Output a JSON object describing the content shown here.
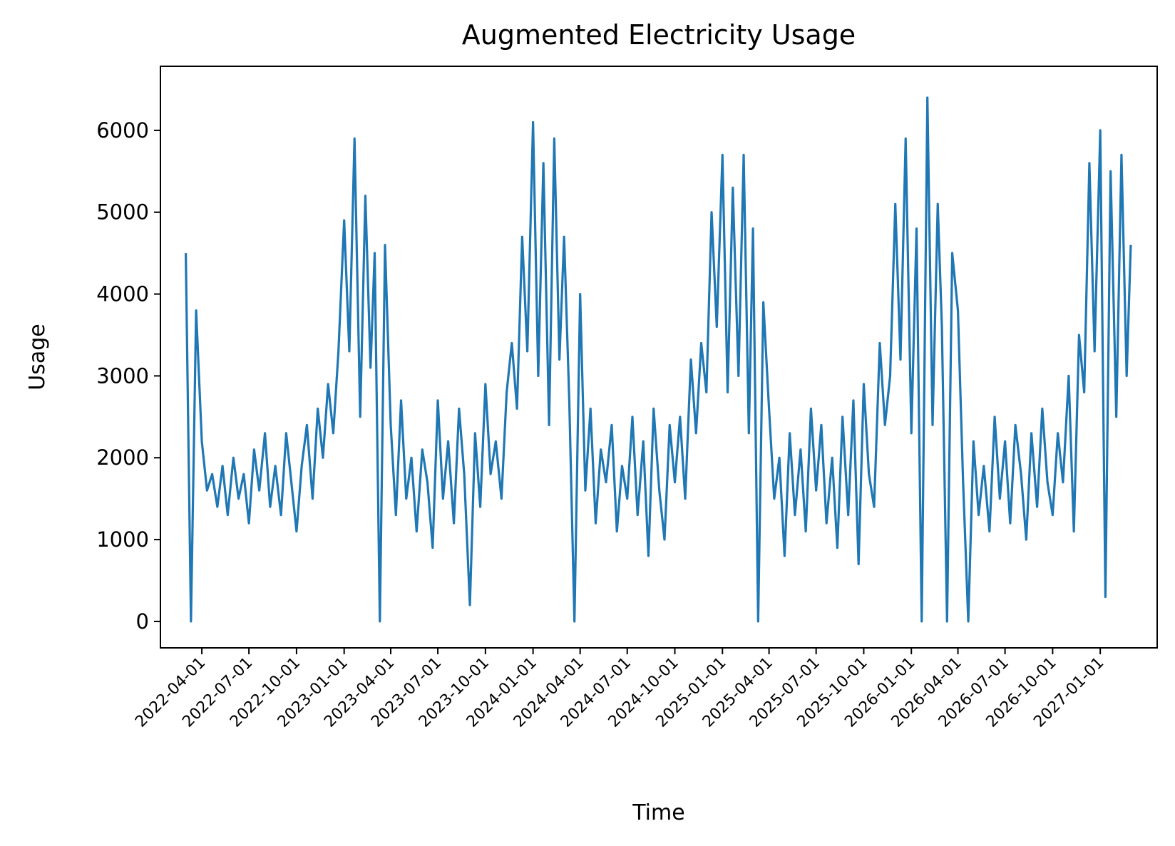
{
  "chart_data": {
    "type": "line",
    "title": "Augmented Electricity Usage",
    "x_label": "Time",
    "y_label": "Usage",
    "x": [
      "2022-03-01",
      "2022-03-11",
      "2022-03-21",
      "2022-04-01",
      "2022-04-11",
      "2022-04-21",
      "2022-05-01",
      "2022-05-11",
      "2022-05-21",
      "2022-06-01",
      "2022-06-11",
      "2022-06-21",
      "2022-07-01",
      "2022-07-11",
      "2022-07-21",
      "2022-08-01",
      "2022-08-11",
      "2022-08-21",
      "2022-09-01",
      "2022-09-11",
      "2022-09-21",
      "2022-10-01",
      "2022-10-11",
      "2022-10-21",
      "2022-11-01",
      "2022-11-11",
      "2022-11-21",
      "2022-12-01",
      "2022-12-11",
      "2022-12-21",
      "2023-01-01",
      "2023-01-11",
      "2023-01-21",
      "2023-02-01",
      "2023-02-11",
      "2023-02-21",
      "2023-03-01",
      "2023-03-11",
      "2023-03-21",
      "2023-04-01",
      "2023-04-11",
      "2023-04-21",
      "2023-05-01",
      "2023-05-11",
      "2023-05-21",
      "2023-06-01",
      "2023-06-11",
      "2023-06-21",
      "2023-07-01",
      "2023-07-11",
      "2023-07-21",
      "2023-08-01",
      "2023-08-11",
      "2023-08-21",
      "2023-09-01",
      "2023-09-11",
      "2023-09-21",
      "2023-10-01",
      "2023-10-11",
      "2023-10-21",
      "2023-11-01",
      "2023-11-11",
      "2023-11-21",
      "2023-12-01",
      "2023-12-11",
      "2023-12-21",
      "2024-01-01",
      "2024-01-11",
      "2024-01-21",
      "2024-02-01",
      "2024-02-11",
      "2024-02-21",
      "2024-03-01",
      "2024-03-11",
      "2024-03-21",
      "2024-04-01",
      "2024-04-11",
      "2024-04-21",
      "2024-05-01",
      "2024-05-11",
      "2024-05-21",
      "2024-06-01",
      "2024-06-11",
      "2024-06-21",
      "2024-07-01",
      "2024-07-11",
      "2024-07-21",
      "2024-08-01",
      "2024-08-11",
      "2024-08-21",
      "2024-09-01",
      "2024-09-11",
      "2024-09-21",
      "2024-10-01",
      "2024-10-11",
      "2024-10-21",
      "2024-11-01",
      "2024-11-11",
      "2024-11-21",
      "2024-12-01",
      "2024-12-11",
      "2024-12-21",
      "2025-01-01",
      "2025-01-11",
      "2025-01-21",
      "2025-02-01",
      "2025-02-11",
      "2025-02-21",
      "2025-03-01",
      "2025-03-11",
      "2025-03-21",
      "2025-04-01",
      "2025-04-11",
      "2025-04-21",
      "2025-05-01",
      "2025-05-11",
      "2025-05-21",
      "2025-06-01",
      "2025-06-11",
      "2025-06-21",
      "2025-07-01",
      "2025-07-11",
      "2025-07-21",
      "2025-08-01",
      "2025-08-11",
      "2025-08-21",
      "2025-09-01",
      "2025-09-11",
      "2025-09-21",
      "2025-10-01",
      "2025-10-11",
      "2025-10-21",
      "2025-11-01",
      "2025-11-11",
      "2025-11-21",
      "2025-12-01",
      "2025-12-11",
      "2025-12-21",
      "2026-01-01",
      "2026-01-11",
      "2026-01-21",
      "2026-02-01",
      "2026-02-11",
      "2026-02-21",
      "2026-03-01",
      "2026-03-11",
      "2026-03-21",
      "2026-04-01",
      "2026-04-11",
      "2026-04-21",
      "2026-05-01",
      "2026-05-11",
      "2026-05-21",
      "2026-06-01",
      "2026-06-11",
      "2026-06-21",
      "2026-07-01",
      "2026-07-11",
      "2026-07-21",
      "2026-08-01",
      "2026-08-11",
      "2026-08-21",
      "2026-09-01",
      "2026-09-11",
      "2026-09-21",
      "2026-10-01",
      "2026-10-11",
      "2026-10-21",
      "2026-11-01",
      "2026-11-11",
      "2026-11-21",
      "2026-12-01",
      "2026-12-11",
      "2026-12-21",
      "2027-01-01",
      "2027-01-11",
      "2027-01-21",
      "2027-02-01",
      "2027-02-11",
      "2027-02-21",
      "2027-03-01"
    ],
    "series": [
      {
        "name": "Usage",
        "color": "#1f77b4",
        "values": [
          4500,
          0,
          3800,
          2200,
          1600,
          1800,
          1400,
          1900,
          1300,
          2000,
          1500,
          1800,
          1200,
          2100,
          1600,
          2300,
          1400,
          1900,
          1300,
          2300,
          1700,
          1100,
          1900,
          2400,
          1500,
          2600,
          2000,
          2900,
          2300,
          3300,
          4900,
          3300,
          5900,
          2500,
          5200,
          3100,
          4500,
          0,
          4600,
          2400,
          1300,
          2700,
          1500,
          2000,
          1100,
          2100,
          1700,
          900,
          2700,
          1500,
          2200,
          1200,
          2600,
          1800,
          200,
          2300,
          1400,
          2900,
          1800,
          2200,
          1500,
          2800,
          3400,
          2600,
          4700,
          3300,
          6100,
          3000,
          5600,
          2400,
          5900,
          3200,
          4700,
          2700,
          0,
          4000,
          1600,
          2600,
          1200,
          2100,
          1700,
          2400,
          1100,
          1900,
          1500,
          2500,
          1300,
          2200,
          800,
          2600,
          1600,
          1000,
          2400,
          1700,
          2500,
          1500,
          3200,
          2300,
          3400,
          2800,
          5000,
          3600,
          5700,
          2800,
          5300,
          3000,
          5700,
          2300,
          4800,
          0,
          3900,
          2600,
          1500,
          2000,
          800,
          2300,
          1300,
          2100,
          1100,
          2600,
          1600,
          2400,
          1200,
          2000,
          900,
          2500,
          1300,
          2700,
          700,
          2900,
          1800,
          1400,
          3400,
          2400,
          3000,
          5100,
          3200,
          5900,
          2300,
          4800,
          0,
          6400,
          2400,
          5100,
          3600,
          0,
          4500,
          3800,
          1700,
          0,
          2200,
          1300,
          1900,
          1100,
          2500,
          1500,
          2200,
          1200,
          2400,
          1800,
          1000,
          2300,
          1400,
          2600,
          1700,
          1300,
          2300,
          1700,
          3000,
          1100,
          3500,
          2800,
          5600,
          3300,
          6000,
          300,
          5500,
          2500,
          5700,
          3000,
          4600
        ]
      }
    ],
    "xlim": [
      "2022-01-11",
      "2027-04-21"
    ],
    "xticks": [
      "2022-04-01",
      "2022-07-01",
      "2022-10-01",
      "2023-01-01",
      "2023-04-01",
      "2023-07-01",
      "2023-10-01",
      "2024-01-01",
      "2024-04-01",
      "2024-07-01",
      "2024-10-01",
      "2025-01-01",
      "2025-04-01",
      "2025-07-01",
      "2025-10-01",
      "2026-01-01",
      "2026-04-01",
      "2026-07-01",
      "2026-10-01",
      "2027-01-01"
    ],
    "ylim": [
      -323,
      6783
    ],
    "yticks": [
      0,
      1000,
      2000,
      3000,
      4000,
      5000,
      6000
    ],
    "grid": false
  }
}
